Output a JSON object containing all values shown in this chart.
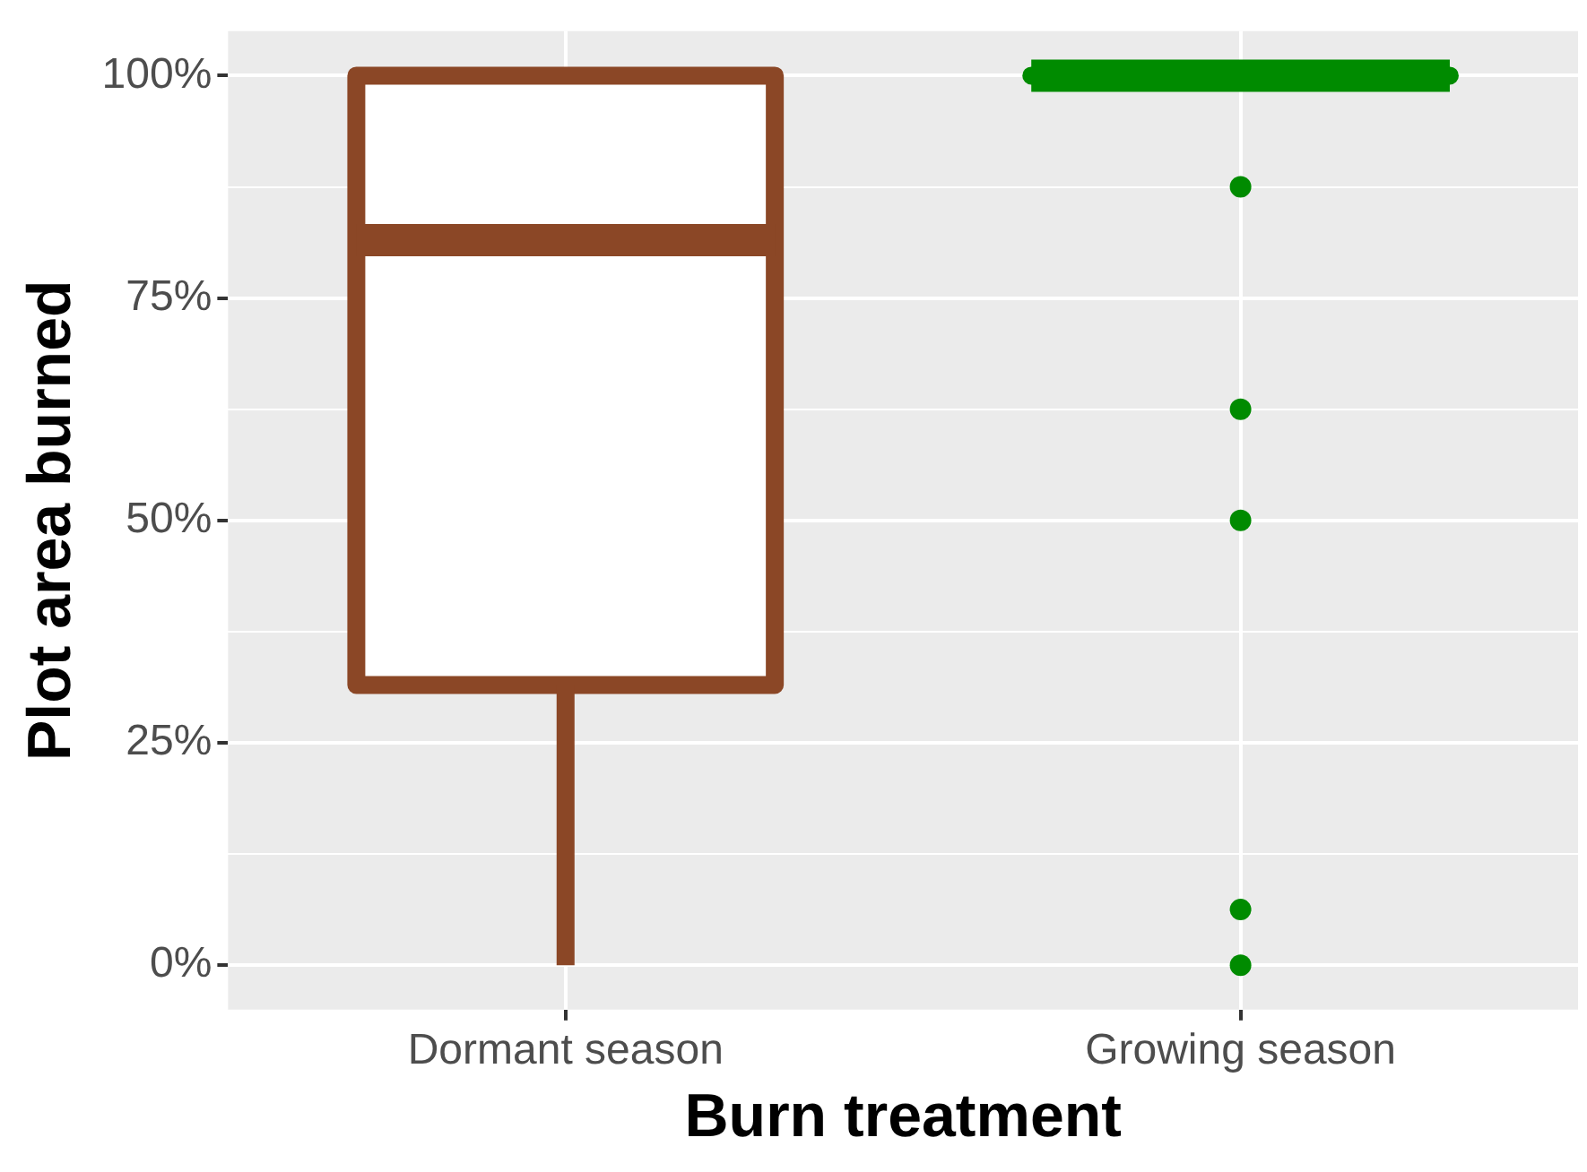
{
  "chart_data": {
    "type": "box",
    "xlabel": "Burn treatment",
    "ylabel": "Plot area burned",
    "categories": [
      "Dormant season",
      "Growing season"
    ],
    "colors": [
      "#8b4726",
      "#008b00"
    ],
    "boxes": [
      {
        "low": 0,
        "q1": 31.5,
        "median": 81.5,
        "q3": 100,
        "high": 100
      },
      {
        "low": 100,
        "q1": 100,
        "median": 100,
        "q3": 100,
        "high": 100,
        "outliers": [
          87.5,
          62.5,
          50,
          6.25,
          0
        ]
      }
    ],
    "ylim": [
      -5,
      105
    ],
    "yticks": [
      {
        "value": 0,
        "label": "0%"
      },
      {
        "value": 12.5,
        "label": null
      },
      {
        "value": 25,
        "label": "25%"
      },
      {
        "value": 37.5,
        "label": null
      },
      {
        "value": 50,
        "label": "50%"
      },
      {
        "value": 62.5,
        "label": null
      },
      {
        "value": 75,
        "label": "75%"
      },
      {
        "value": 87.5,
        "label": null
      },
      {
        "value": 100,
        "label": "100%"
      }
    ],
    "grid": true,
    "legend": false
  }
}
